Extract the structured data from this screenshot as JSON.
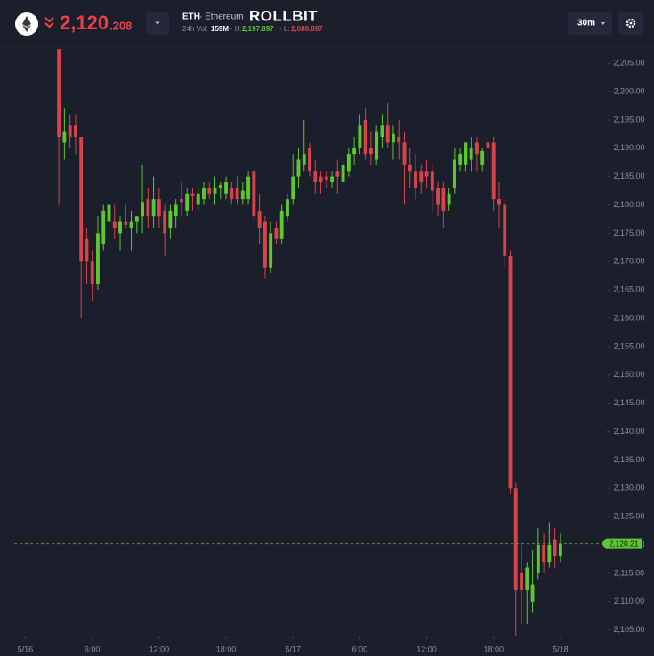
{
  "header": {
    "price_main": "2,120",
    "price_decimals": ".208",
    "symbol": "ETH",
    "symbol_name": "· Ethereum",
    "brand": "ROLLBIT",
    "vol_label": "24h Vol:",
    "vol_value": "159M",
    "high_label": "· H:",
    "high_value": "2,197.897",
    "low_label": "· L:",
    "low_value": "2,088.897",
    "interval": "30m"
  },
  "chart_data": {
    "type": "candlestick",
    "up_color": "#5ec631",
    "down_color": "#d7434b",
    "xlim": [
      -1,
      52
    ],
    "xticks": [
      {
        "value": 0,
        "label": "5/16"
      },
      {
        "value": 6,
        "label": "6:00"
      },
      {
        "value": 12,
        "label": "12:00"
      },
      {
        "value": 18,
        "label": "18:00"
      },
      {
        "value": 24,
        "label": "5/17"
      },
      {
        "value": 30,
        "label": "6:00"
      },
      {
        "value": 36,
        "label": "12:00"
      },
      {
        "value": 42,
        "label": "18:00"
      },
      {
        "value": 48,
        "label": "5/18"
      }
    ],
    "ylim": [
      2104,
      2208
    ],
    "yticks": [
      {
        "value": 2105,
        "label": "2,105.00"
      },
      {
        "value": 2110,
        "label": "2,110.00"
      },
      {
        "value": 2115,
        "label": "2,115.00"
      },
      {
        "value": 2120,
        "label": "2,120.00"
      },
      {
        "value": 2125,
        "label": "2,125.00"
      },
      {
        "value": 2130,
        "label": "2,130.00"
      },
      {
        "value": 2135,
        "label": "2,135.00"
      },
      {
        "value": 2140,
        "label": "2,140.00"
      },
      {
        "value": 2145,
        "label": "2,145.00"
      },
      {
        "value": 2150,
        "label": "2,150.00"
      },
      {
        "value": 2155,
        "label": "2,155.00"
      },
      {
        "value": 2160,
        "label": "2,160.00"
      },
      {
        "value": 2165,
        "label": "2,165.00"
      },
      {
        "value": 2170,
        "label": "2,170.00"
      },
      {
        "value": 2175,
        "label": "2,175.00"
      },
      {
        "value": 2180,
        "label": "2,180.00"
      },
      {
        "value": 2185,
        "label": "2,185.00"
      },
      {
        "value": 2190,
        "label": "2,190.00"
      },
      {
        "value": 2195,
        "label": "2,195.00"
      },
      {
        "value": 2200,
        "label": "2,200.00"
      },
      {
        "value": 2205,
        "label": "2,205.00"
      }
    ],
    "last_price": {
      "value": 2120.21,
      "label": "2,120.21"
    },
    "x": [
      3,
      3.5,
      4,
      4.5,
      5,
      5.5,
      6,
      6.5,
      7,
      7.5,
      8,
      8.5,
      9,
      9.5,
      10,
      10.5,
      11,
      11.5,
      12,
      12.5,
      13,
      13.5,
      14,
      14.5,
      15,
      15.5,
      16,
      16.5,
      17,
      17.5,
      18,
      18.5,
      19,
      19.5,
      20,
      20.5,
      21,
      21.5,
      22,
      22.5,
      23,
      23.5,
      24,
      24.5,
      25,
      25.5,
      26,
      26.5,
      27,
      27.5,
      28,
      28.5,
      29,
      29.5,
      30,
      30.5,
      31,
      31.5,
      32,
      32.5,
      33,
      33.5,
      34,
      34.5,
      35,
      35.5,
      36,
      36.5,
      37,
      37.5,
      38,
      38.5,
      39,
      39.5,
      40,
      40.5,
      41,
      41.5,
      42,
      42.5,
      43,
      43.5,
      44,
      44.5,
      45,
      45.5,
      46,
      46.5,
      47,
      47.5,
      48
    ],
    "open": [
      2207.5,
      2191,
      2194,
      2194,
      2192,
      2174,
      2170,
      2166,
      2173,
      2177,
      2177,
      2175,
      2177,
      2176,
      2177,
      2178,
      2181,
      2178,
      2181,
      2179,
      2176,
      2178,
      2181,
      2179,
      2182,
      2180,
      2181,
      2183,
      2182,
      2183,
      2182,
      2183,
      2183,
      2181,
      2181,
      2186,
      2179,
      2177,
      2169,
      2176,
      2174,
      2178,
      2181,
      2185,
      2187,
      2190,
      2186,
      2185,
      2185,
      2184,
      2186,
      2184,
      2186,
      2189,
      2190,
      2195,
      2190,
      2188,
      2192,
      2194,
      2191,
      2192,
      2191,
      2187,
      2186,
      2186,
      2186,
      2186,
      2183,
      2183,
      2180,
      2183,
      2187,
      2187,
      2188,
      2191,
      2187,
      2191,
      2191,
      2181,
      2180,
      2171,
      2130,
      2115,
      2112,
      2110,
      2115,
      2120,
      2117,
      2121,
      2118
    ],
    "high": [
      2207.5,
      2197,
      2196,
      2196,
      2192,
      2176,
      2172,
      2178,
      2180,
      2181,
      2180,
      2178,
      2180,
      2179,
      2178,
      2187,
      2183,
      2185,
      2183,
      2180,
      2180,
      2181,
      2184,
      2183,
      2183,
      2183,
      2184,
      2184,
      2185,
      2184,
      2185,
      2184,
      2185,
      2184,
      2186,
      2186,
      2182,
      2178,
      2177,
      2177,
      2180,
      2182,
      2189,
      2190,
      2195,
      2191,
      2188,
      2186,
      2186,
      2186,
      2188,
      2188,
      2190,
      2192,
      2196,
      2197,
      2193,
      2194,
      2196,
      2198,
      2194,
      2195,
      2193,
      2190,
      2189,
      2187,
      2188,
      2187,
      2184,
      2184,
      2183,
      2190,
      2190,
      2191,
      2192,
      2192,
      2190,
      2192,
      2192,
      2184,
      2181,
      2172,
      2131,
      2120,
      2117,
      2119,
      2123,
      2122,
      2124,
      2123,
      2122
    ],
    "low": [
      2180,
      2188,
      2190,
      2189,
      2160,
      2166,
      2163,
      2165,
      2172,
      2176,
      2174,
      2172,
      2176,
      2172,
      2175,
      2175,
      2176,
      2176,
      2176,
      2171,
      2174,
      2176,
      2178,
      2178,
      2179,
      2179,
      2180,
      2181,
      2180,
      2181,
      2181,
      2180,
      2180,
      2180,
      2180,
      2177,
      2173,
      2167,
      2168,
      2173,
      2173,
      2177,
      2180,
      2183,
      2186,
      2185,
      2182,
      2182,
      2183,
      2183,
      2182,
      2183,
      2185,
      2187,
      2189,
      2188,
      2187,
      2187,
      2190,
      2190,
      2188,
      2188,
      2180,
      2183,
      2181,
      2182,
      2183,
      2179,
      2178,
      2176,
      2179,
      2182,
      2186,
      2186,
      2186,
      2186,
      2186,
      2187,
      2179,
      2176,
      2169,
      2129,
      2104,
      2106,
      2106,
      2108,
      2114,
      2115,
      2116,
      2116,
      2117
    ],
    "close": [
      2192,
      2193,
      2192,
      2192,
      2170,
      2170,
      2166,
      2175,
      2179,
      2180,
      2176,
      2177,
      2176.5,
      2177,
      2178,
      2180.5,
      2178,
      2181,
      2178,
      2175,
      2179,
      2180,
      2180.5,
      2182,
      2181.5,
      2182,
      2183,
      2182,
      2183,
      2183.5,
      2184,
      2181,
      2181,
      2182.5,
      2185,
      2178,
      2176,
      2169,
      2175,
      2174,
      2179,
      2181,
      2185,
      2188,
      2189,
      2186,
      2184,
      2184,
      2184.5,
      2185,
      2185,
      2187,
      2189,
      2190,
      2194,
      2189,
      2189,
      2193,
      2194,
      2191,
      2192.5,
      2191,
      2187,
      2186,
      2183,
      2184,
      2185,
      2182.5,
      2180,
      2179,
      2182,
      2188,
      2189,
      2191,
      2190,
      2189,
      2189.5,
      2190,
      2181,
      2180,
      2171,
      2130,
      2112,
      2112,
      2116,
      2113,
      2120,
      2117,
      2120,
      2118,
      2120.21
    ]
  }
}
